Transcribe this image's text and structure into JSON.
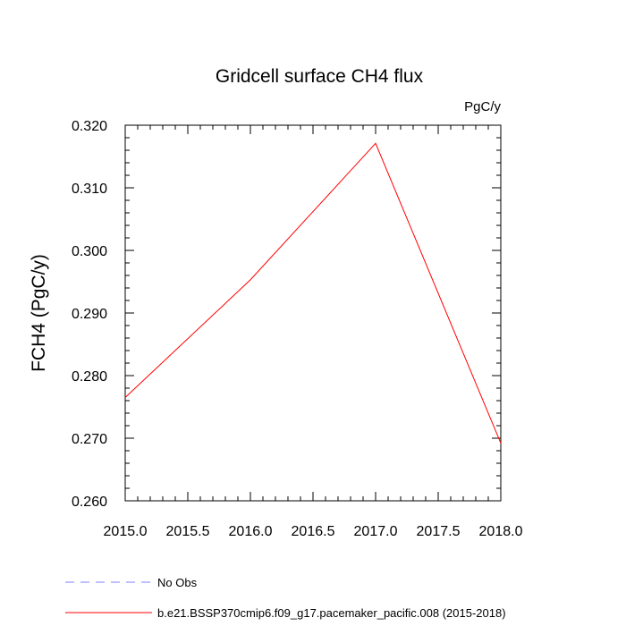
{
  "chart_data": {
    "type": "line",
    "title": "Gridcell surface CH4 flux",
    "units_label": "PgC/y",
    "ylabel": "FCH4  (PgC/y)",
    "xlabel": "",
    "xlim": [
      2015.0,
      2018.0
    ],
    "ylim": [
      0.26,
      0.32
    ],
    "x_ticks": [
      "2015.0",
      "2015.5",
      "2016.0",
      "2016.5",
      "2017.0",
      "2017.5",
      "2018.0"
    ],
    "y_ticks": [
      "0.260",
      "0.270",
      "0.280",
      "0.290",
      "0.300",
      "0.310",
      "0.320"
    ],
    "grid": false,
    "legend_position": "bottom",
    "series": [
      {
        "name": "b.e21.BSSP370cmip6.f09_g17.pacemaker_pacific.008 (2015-2018)",
        "color": "#ff0000",
        "dash": "solid",
        "x": [
          2015,
          2016,
          2017,
          2018
        ],
        "y": [
          0.2765,
          0.2953,
          0.3171,
          0.2692
        ]
      }
    ],
    "legend": [
      {
        "label": "No Obs",
        "color": "#8080ff",
        "dash": "dashed"
      },
      {
        "label": "b.e21.BSSP370cmip6.f09_g17.pacemaker_pacific.008 (2015-2018)",
        "color": "#ff0000",
        "dash": "solid"
      }
    ]
  }
}
